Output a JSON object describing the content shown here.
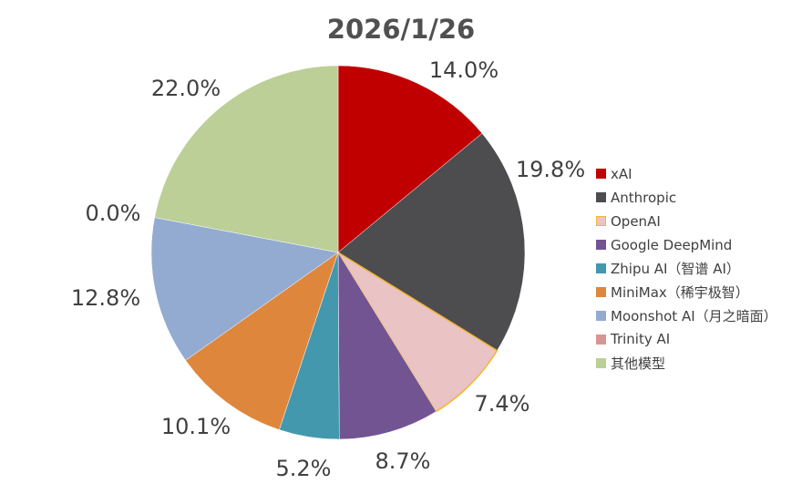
{
  "chart_data": {
    "type": "pie",
    "title": "2026/1/26",
    "categories": [
      "xAI",
      "Anthropic",
      "OpenAI",
      "Google DeepMind",
      "Zhipu AI（智谱 AI）",
      "MiniMax（稀宇极智）",
      "Moonshot AI（月之暗面）",
      "Trinity AI",
      "其他模型"
    ],
    "values": [
      14.0,
      19.8,
      7.4,
      8.7,
      5.2,
      10.1,
      12.8,
      0.0,
      22.0
    ],
    "labels": [
      "14.0%",
      "19.8%",
      "7.4%",
      "8.7%",
      "5.2%",
      "10.1%",
      "12.8%",
      "0.0%",
      "22.0%"
    ],
    "colors": [
      "#C00000",
      "#4D4D4F",
      "#EAC3C5",
      "#735492",
      "#4398AE",
      "#DE873C",
      "#93ABD1",
      "#D99594",
      "#BBCF97"
    ],
    "slice_edges": [
      "none",
      "none",
      "#F2B632",
      "none",
      "none",
      "none",
      "none",
      "none",
      "none"
    ],
    "legend_position": "right"
  }
}
